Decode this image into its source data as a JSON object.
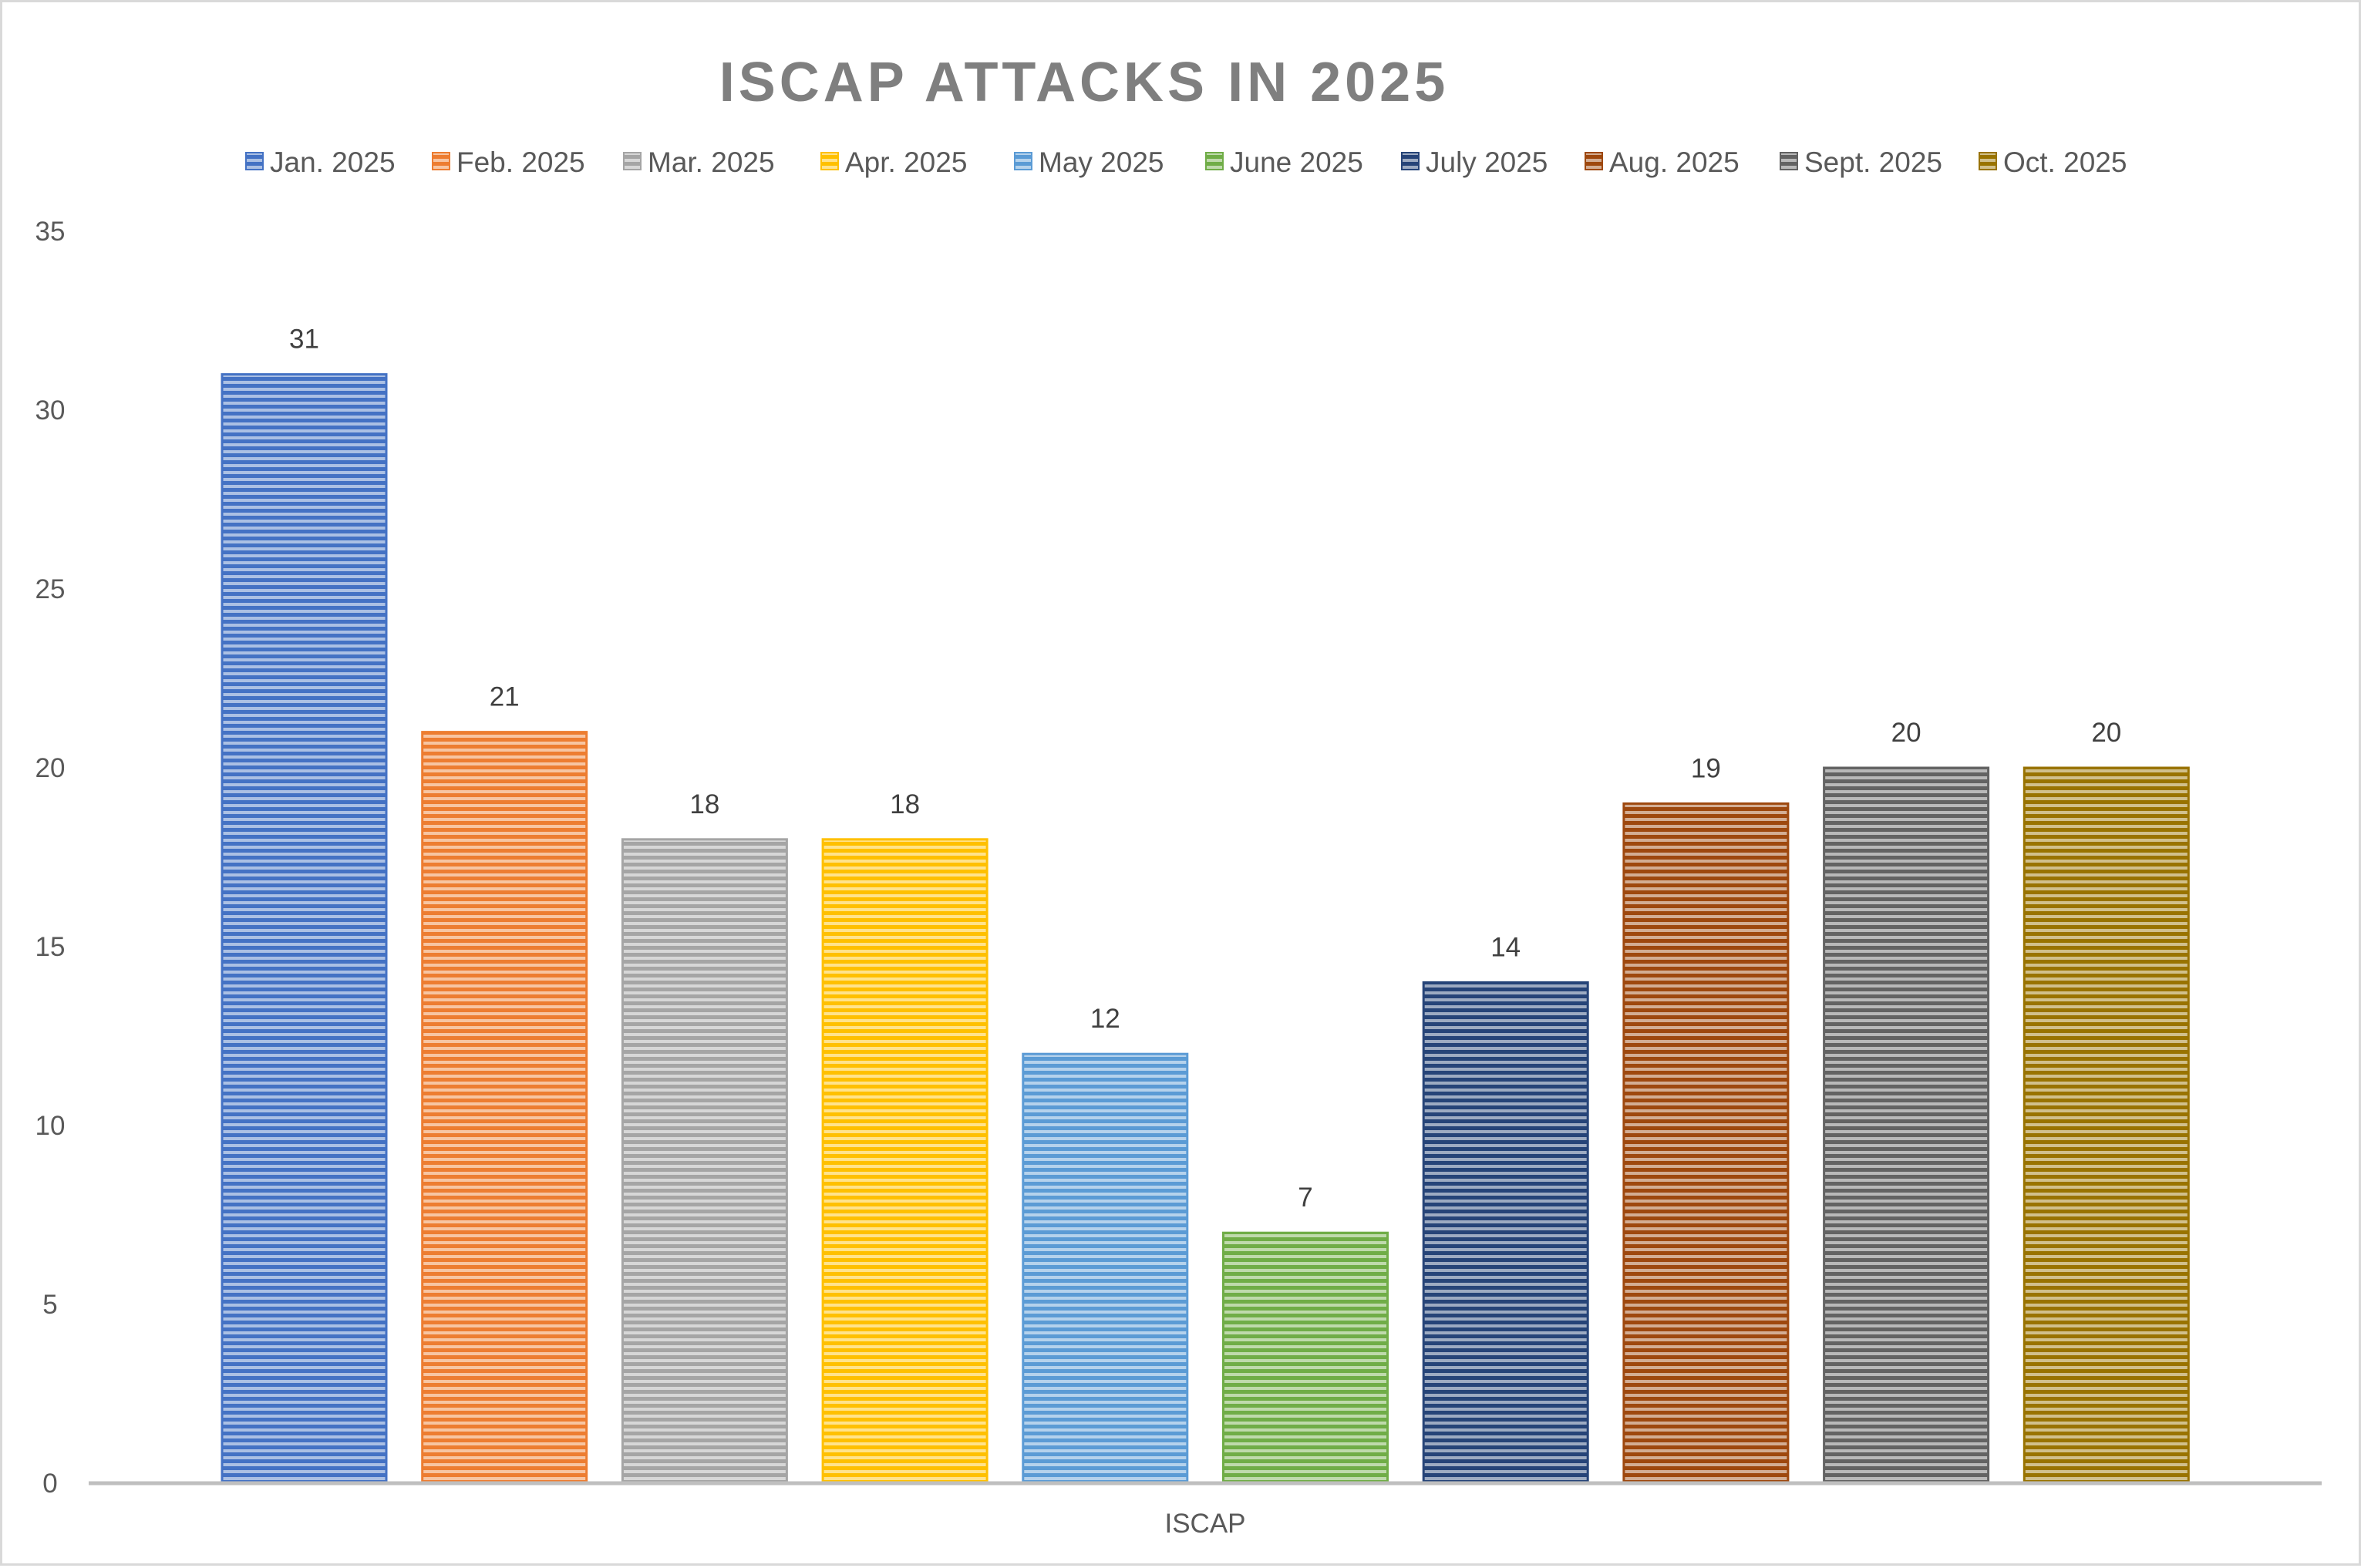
{
  "chart_data": {
    "type": "bar",
    "title": "ISCAP ATTACKS IN 2025",
    "categories": [
      "ISCAP"
    ],
    "series": [
      {
        "name": "Jan. 2025",
        "values": [
          31
        ],
        "color": "#4472C4"
      },
      {
        "name": "Feb. 2025",
        "values": [
          21
        ],
        "color": "#ED7D31"
      },
      {
        "name": "Mar. 2025",
        "values": [
          18
        ],
        "color": "#A5A5A5"
      },
      {
        "name": "Apr. 2025",
        "values": [
          18
        ],
        "color": "#FFC000"
      },
      {
        "name": "May 2025",
        "values": [
          12
        ],
        "color": "#5B9BD5"
      },
      {
        "name": "June 2025",
        "values": [
          7
        ],
        "color": "#70AD47"
      },
      {
        "name": "July 2025",
        "values": [
          14
        ],
        "color": "#264478"
      },
      {
        "name": "Aug. 2025",
        "values": [
          19
        ],
        "color": "#9E480E"
      },
      {
        "name": "Sept. 2025",
        "values": [
          20
        ],
        "color": "#636363"
      },
      {
        "name": "Oct. 2025",
        "values": [
          20
        ],
        "color": "#997300"
      }
    ],
    "ylim": [
      0,
      35
    ],
    "yticks": [
      "0",
      "5",
      "10",
      "15",
      "20",
      "25",
      "30",
      "35"
    ],
    "grid": false,
    "legend_position": "top",
    "data_labels": true,
    "bar_pattern": "horizontal-stripes",
    "title_color": "#7F7F7F"
  }
}
